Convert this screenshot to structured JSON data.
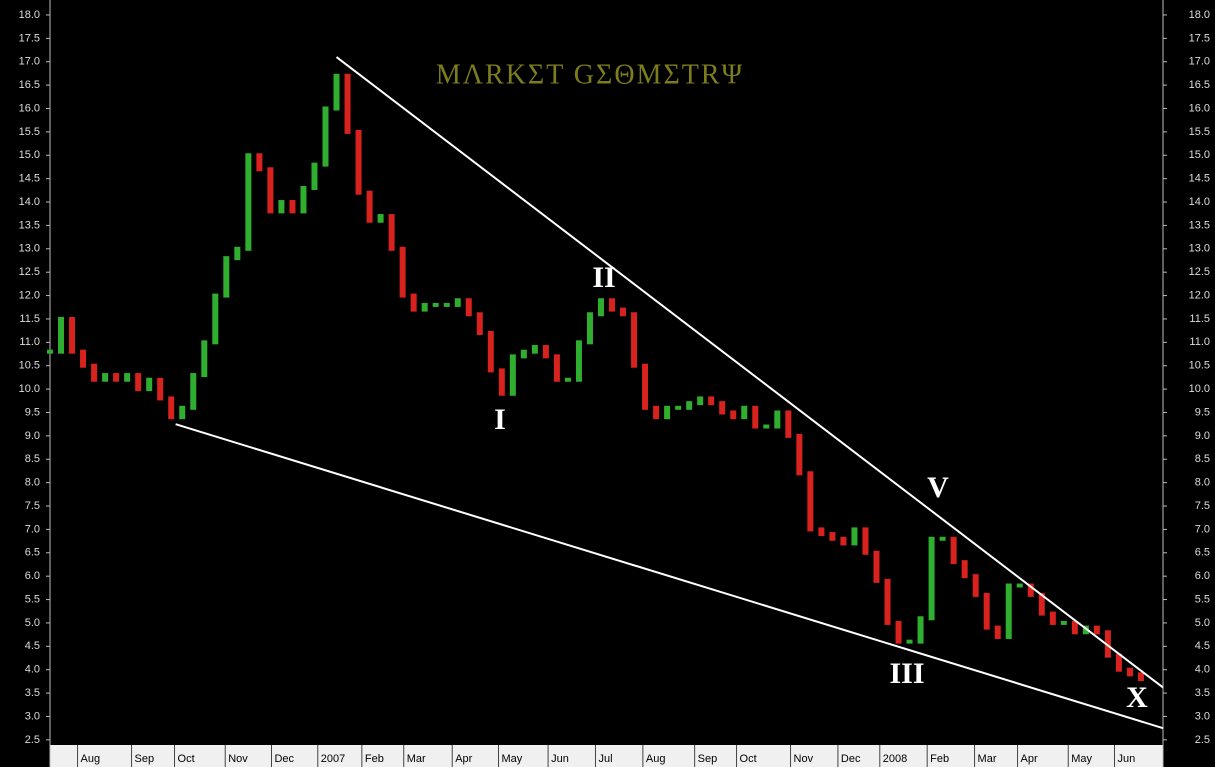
{
  "chart_data": {
    "type": "price",
    "title": "MΛRKΣT GΣΘMΣTRΨ",
    "x": [
      0,
      1,
      2,
      3,
      4,
      5,
      6,
      7,
      8,
      9,
      10,
      11,
      12,
      13,
      14,
      15,
      16,
      17,
      18,
      19,
      20,
      21,
      22,
      23,
      24,
      25,
      26,
      27,
      28,
      29,
      30,
      31,
      32,
      33,
      34,
      35,
      36,
      37,
      38,
      39,
      40,
      41,
      42,
      43,
      44,
      45,
      46,
      47,
      48,
      49,
      50,
      51,
      52,
      53,
      54,
      55,
      56,
      57,
      58,
      59,
      60,
      61,
      62,
      63,
      64,
      65,
      66,
      67,
      68,
      69,
      70,
      71,
      72,
      73,
      74,
      75,
      76,
      77,
      78,
      79,
      80,
      81,
      82,
      83,
      84,
      85,
      86,
      87,
      88,
      89,
      90,
      91,
      92,
      93,
      94,
      95,
      96,
      97,
      98,
      99
    ],
    "values": [
      10.8,
      11.5,
      10.8,
      10.5,
      10.2,
      10.3,
      10.2,
      10.3,
      10.0,
      10.2,
      9.8,
      9.4,
      9.6,
      10.3,
      11.0,
      12.0,
      12.8,
      13.0,
      15.0,
      14.7,
      13.8,
      14.0,
      13.8,
      14.3,
      14.8,
      16.0,
      16.7,
      15.5,
      14.2,
      13.6,
      13.7,
      13.0,
      12.0,
      11.7,
      11.8,
      11.8,
      11.8,
      11.9,
      11.6,
      11.2,
      10.4,
      9.9,
      10.7,
      10.8,
      10.9,
      10.7,
      10.2,
      10.2,
      11.0,
      11.6,
      11.9,
      11.7,
      11.6,
      10.5,
      9.6,
      9.4,
      9.6,
      9.6,
      9.7,
      9.8,
      9.7,
      9.5,
      9.4,
      9.6,
      9.2,
      9.2,
      9.5,
      9.0,
      8.2,
      7.0,
      6.9,
      6.8,
      6.7,
      7.0,
      6.5,
      5.9,
      5.0,
      4.6,
      4.6,
      5.1,
      6.8,
      6.8,
      6.3,
      6.0,
      5.6,
      4.9,
      4.7,
      5.8,
      5.8,
      5.6,
      5.2,
      5.0,
      5.0,
      4.8,
      4.9,
      4.8,
      4.3,
      4.0,
      3.9,
      3.8
    ],
    "up_color": "#2fae2f",
    "down_color": "#d8221e",
    "trendlines": [
      {
        "x": [
          26.0,
          101
        ],
        "y": [
          17.1,
          3.62
        ]
      },
      {
        "x": [
          11.4,
          101
        ],
        "y": [
          9.25,
          2.75
        ]
      }
    ],
    "annotations": [
      "I",
      "II",
      "III",
      "V",
      "X"
    ],
    "xlim": [
      0,
      101
    ],
    "ylim": [
      2.39,
      18.32
    ],
    "xticks": [
      {
        "value": 2.5,
        "label": "Aug"
      },
      {
        "value": 7.4,
        "label": "Sep"
      },
      {
        "value": 11.3,
        "label": "Oct"
      },
      {
        "value": 15.9,
        "label": "Nov"
      },
      {
        "value": 20.1,
        "label": "Dec"
      },
      {
        "value": 24.3,
        "label": "2007"
      },
      {
        "value": 28.3,
        "label": "Feb"
      },
      {
        "value": 32.1,
        "label": "Mar"
      },
      {
        "value": 36.5,
        "label": "Apr"
      },
      {
        "value": 40.7,
        "label": "May"
      },
      {
        "value": 45.2,
        "label": "Jun"
      },
      {
        "value": 49.5,
        "label": "Jul"
      },
      {
        "value": 53.8,
        "label": "Aug"
      },
      {
        "value": 58.5,
        "label": "Sep"
      },
      {
        "value": 62.3,
        "label": "Oct"
      },
      {
        "value": 67.2,
        "label": "Nov"
      },
      {
        "value": 71.5,
        "label": "Dec"
      },
      {
        "value": 75.3,
        "label": "2008"
      },
      {
        "value": 79.6,
        "label": "Feb"
      },
      {
        "value": 83.9,
        "label": "Mar"
      },
      {
        "value": 87.8,
        "label": "Apr"
      },
      {
        "value": 92.4,
        "label": "May"
      },
      {
        "value": 96.6,
        "label": "Jun"
      }
    ],
    "yticks": [
      2.5,
      {
        "value": 3,
        "label": "3.0"
      },
      3.5,
      {
        "value": 4,
        "label": "4.0"
      },
      4.5,
      {
        "value": 5,
        "label": "5.0"
      },
      5.5,
      {
        "value": 6,
        "label": "6.0"
      },
      6.5,
      {
        "value": 7,
        "label": "7.0"
      },
      7.5,
      {
        "value": 8,
        "label": "8.0"
      },
      8.5,
      {
        "value": 9,
        "label": "9.0"
      },
      9.5,
      {
        "value": 10,
        "label": "10.0"
      },
      10.5,
      {
        "value": 11,
        "label": "11.0"
      },
      11.5,
      {
        "value": 12,
        "label": "12.0"
      },
      12.5,
      {
        "value": 13,
        "label": "13.0"
      },
      13.5,
      {
        "value": 14,
        "label": "14.0"
      },
      14.5,
      {
        "value": 15,
        "label": "15.0"
      },
      15.5,
      {
        "value": 16,
        "label": "16.0"
      },
      16.5,
      {
        "value": 17,
        "label": "17.0"
      },
      17.5,
      {
        "value": 18,
        "label": "18.0"
      }
    ]
  }
}
